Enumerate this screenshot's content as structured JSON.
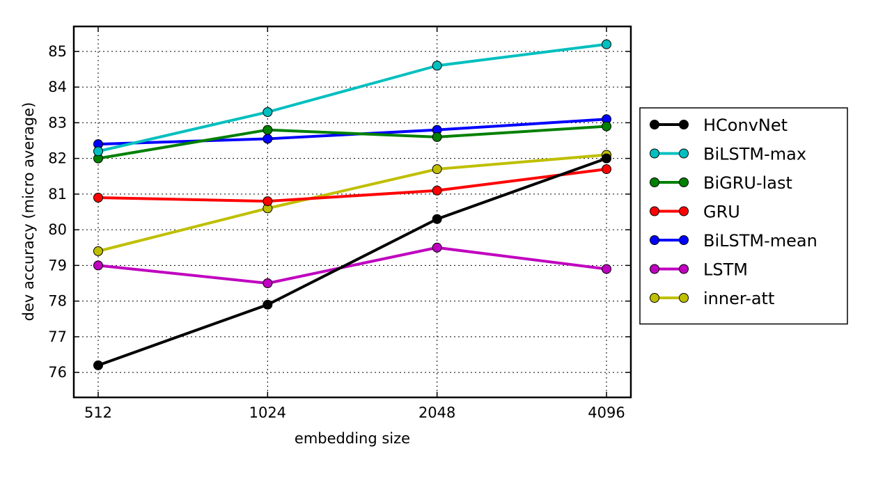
{
  "chart_data": {
    "type": "line",
    "title": "",
    "xlabel": "embedding size",
    "ylabel": "dev accuracy (micro average)",
    "x": [
      "512",
      "1024",
      "2048",
      "4096"
    ],
    "xscale": "categorical (log2 spacing)",
    "ylim": [
      75.3,
      85.7
    ],
    "yticks": [
      76,
      77,
      78,
      79,
      80,
      81,
      82,
      83,
      84,
      85
    ],
    "grid": true,
    "legend_position": "right, outside plot",
    "series": [
      {
        "name": "HConvNet",
        "color": "#000000",
        "values": [
          76.2,
          77.9,
          80.3,
          82.0
        ]
      },
      {
        "name": "BiLSTM-max",
        "color": "#00bfbf",
        "values": [
          82.2,
          83.3,
          84.6,
          85.2
        ]
      },
      {
        "name": "BiGRU-last",
        "color": "#008000",
        "values": [
          82.0,
          82.8,
          82.6,
          82.9
        ]
      },
      {
        "name": "GRU",
        "color": "#ff0000",
        "values": [
          80.9,
          80.8,
          81.1,
          81.7
        ]
      },
      {
        "name": "BiLSTM-mean",
        "color": "#0000ff",
        "values": [
          82.4,
          82.55,
          82.8,
          83.1
        ]
      },
      {
        "name": "LSTM",
        "color": "#bf00bf",
        "values": [
          79.0,
          78.5,
          79.5,
          78.9
        ]
      },
      {
        "name": "inner-att",
        "color": "#bfbf00",
        "values": [
          79.4,
          80.6,
          81.7,
          82.1
        ]
      }
    ]
  }
}
